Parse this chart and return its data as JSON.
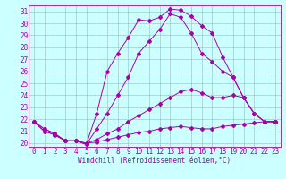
{
  "xlabel": "Windchill (Refroidissement éolien,°C)",
  "x": [
    0,
    1,
    2,
    3,
    4,
    5,
    6,
    7,
    8,
    9,
    10,
    11,
    12,
    13,
    14,
    15,
    16,
    17,
    18,
    19,
    20,
    21,
    22,
    23
  ],
  "line1": [
    21.8,
    21.2,
    20.8,
    20.2,
    20.2,
    19.9,
    22.5,
    26.0,
    27.5,
    28.8,
    30.3,
    30.2,
    30.5,
    31.2,
    31.1,
    30.6,
    29.8,
    29.2,
    27.2,
    25.5,
    23.8,
    22.5,
    21.8,
    21.8
  ],
  "line2": [
    21.8,
    21.2,
    20.8,
    20.2,
    20.2,
    19.9,
    21.2,
    22.5,
    24.0,
    25.5,
    27.5,
    28.5,
    29.5,
    30.8,
    30.5,
    29.2,
    27.5,
    26.8,
    26.0,
    25.5,
    23.8,
    22.5,
    21.8,
    21.8
  ],
  "line3": [
    21.8,
    21.0,
    20.7,
    20.2,
    20.2,
    20.0,
    20.3,
    20.8,
    21.2,
    21.8,
    22.3,
    22.8,
    23.3,
    23.8,
    24.3,
    24.5,
    24.2,
    23.8,
    23.8,
    24.0,
    23.8,
    22.5,
    21.8,
    21.8
  ],
  "line4": [
    21.8,
    21.0,
    20.7,
    20.2,
    20.2,
    20.0,
    20.1,
    20.3,
    20.5,
    20.7,
    20.9,
    21.0,
    21.2,
    21.3,
    21.4,
    21.3,
    21.2,
    21.2,
    21.4,
    21.5,
    21.6,
    21.7,
    21.8,
    21.8
  ],
  "ylim_min": 19.7,
  "ylim_max": 31.5,
  "yticks": [
    20,
    21,
    22,
    23,
    24,
    25,
    26,
    27,
    28,
    29,
    30,
    31
  ],
  "line_color": "#aa00aa",
  "bg_color": "#ccffff",
  "grid_color": "#99bbbb",
  "marker_size": 2.0,
  "lw": 0.7,
  "xlabel_fontsize": 5.5,
  "tick_fontsize": 5.5
}
